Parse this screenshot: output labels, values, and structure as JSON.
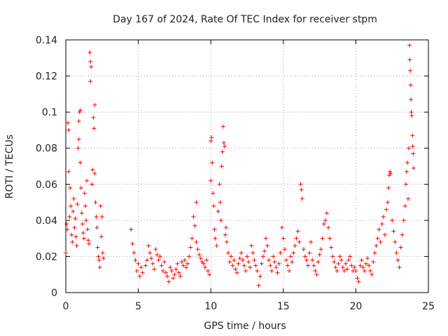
{
  "chart_data": {
    "type": "scatter",
    "title": "Day 167 of 2024, Rate Of TEC Index for receiver stpm",
    "xlabel": "GPS time / hours",
    "ylabel": "ROTI / TECUs",
    "xlim": [
      0,
      25
    ],
    "ylim": [
      0,
      0.14
    ],
    "xticks": [
      0,
      5,
      10,
      15,
      20,
      25
    ],
    "xtick_labels": [
      "0",
      "5",
      "10",
      "15",
      "20",
      "25"
    ],
    "yticks": [
      0,
      0.02,
      0.04,
      0.06,
      0.08,
      0.1,
      0.12,
      0.14
    ],
    "ytick_labels": [
      "0",
      "0.02",
      "0.04",
      "0.06",
      "0.08",
      "0.1",
      "0.12",
      "0.14"
    ],
    "grid": true,
    "marker": "+",
    "color": "#ff0000",
    "series": [
      {
        "name": "ROTI",
        "points": [
          [
            0.0,
            0.022
          ],
          [
            0.05,
            0.038
          ],
          [
            0.1,
            0.035
          ],
          [
            0.15,
            0.094
          ],
          [
            0.2,
            0.09
          ],
          [
            0.2,
            0.067
          ],
          [
            0.25,
            0.042
          ],
          [
            0.3,
            0.058
          ],
          [
            0.35,
            0.048
          ],
          [
            0.4,
            0.032
          ],
          [
            0.45,
            0.028
          ],
          [
            0.5,
            0.045
          ],
          [
            0.55,
            0.052
          ],
          [
            0.6,
            0.036
          ],
          [
            0.65,
            0.041
          ],
          [
            0.7,
            0.031
          ],
          [
            0.75,
            0.026
          ],
          [
            0.8,
            0.049
          ],
          [
            0.85,
            0.08
          ],
          [
            0.9,
            0.085
          ],
          [
            0.9,
            0.095
          ],
          [
            0.95,
            0.1
          ],
          [
            1.0,
            0.101
          ],
          [
            1.0,
            0.072
          ],
          [
            1.05,
            0.058
          ],
          [
            1.1,
            0.044
          ],
          [
            1.15,
            0.038
          ],
          [
            1.2,
            0.033
          ],
          [
            1.25,
            0.03
          ],
          [
            1.3,
            0.055
          ],
          [
            1.35,
            0.048
          ],
          [
            1.4,
            0.04
          ],
          [
            1.45,
            0.062
          ],
          [
            1.5,
            0.035
          ],
          [
            1.55,
            0.029
          ],
          [
            1.6,
            0.027
          ],
          [
            1.65,
            0.133
          ],
          [
            1.7,
            0.128
          ],
          [
            1.7,
            0.117
          ],
          [
            1.75,
            0.125
          ],
          [
            1.8,
            0.06
          ],
          [
            1.85,
            0.068
          ],
          [
            1.9,
            0.097
          ],
          [
            1.95,
            0.091
          ],
          [
            2.0,
            0.104
          ],
          [
            2.0,
            0.066
          ],
          [
            2.05,
            0.05
          ],
          [
            2.1,
            0.042
          ],
          [
            2.15,
            0.036
          ],
          [
            2.2,
            0.025
          ],
          [
            2.25,
            0.02
          ],
          [
            2.3,
            0.018
          ],
          [
            2.35,
            0.014
          ],
          [
            2.4,
            0.048
          ],
          [
            2.45,
            0.031
          ],
          [
            2.5,
            0.042
          ],
          [
            2.55,
            0.022
          ],
          [
            2.6,
            0.019
          ],
          [
            4.5,
            0.035
          ],
          [
            4.6,
            0.027
          ],
          [
            4.7,
            0.022
          ],
          [
            4.8,
            0.018
          ],
          [
            4.9,
            0.012
          ],
          [
            5.0,
            0.016
          ],
          [
            5.1,
            0.009
          ],
          [
            5.2,
            0.014
          ],
          [
            5.3,
            0.011
          ],
          [
            5.5,
            0.015
          ],
          [
            5.6,
            0.018
          ],
          [
            5.7,
            0.026
          ],
          [
            5.8,
            0.022
          ],
          [
            5.9,
            0.019
          ],
          [
            6.0,
            0.016
          ],
          [
            6.1,
            0.013
          ],
          [
            6.2,
            0.024
          ],
          [
            6.3,
            0.021
          ],
          [
            6.4,
            0.018
          ],
          [
            6.5,
            0.02
          ],
          [
            6.6,
            0.015
          ],
          [
            6.7,
            0.012
          ],
          [
            6.8,
            0.017
          ],
          [
            6.9,
            0.011
          ],
          [
            7.0,
            0.009
          ],
          [
            7.1,
            0.006
          ],
          [
            7.2,
            0.014
          ],
          [
            7.3,
            0.012
          ],
          [
            7.4,
            0.008
          ],
          [
            7.5,
            0.01
          ],
          [
            7.6,
            0.013
          ],
          [
            7.7,
            0.016
          ],
          [
            7.8,
            0.011
          ],
          [
            7.9,
            0.009
          ],
          [
            8.0,
            0.017
          ],
          [
            8.1,
            0.015
          ],
          [
            8.2,
            0.018
          ],
          [
            8.3,
            0.014
          ],
          [
            8.4,
            0.016
          ],
          [
            8.5,
            0.02
          ],
          [
            8.6,
            0.025
          ],
          [
            8.7,
            0.03
          ],
          [
            8.8,
            0.042
          ],
          [
            8.9,
            0.037
          ],
          [
            9.0,
            0.05
          ],
          [
            9.0,
            0.028
          ],
          [
            9.1,
            0.024
          ],
          [
            9.2,
            0.021
          ],
          [
            9.3,
            0.019
          ],
          [
            9.4,
            0.017
          ],
          [
            9.5,
            0.016
          ],
          [
            9.6,
            0.014
          ],
          [
            9.7,
            0.018
          ],
          [
            9.8,
            0.012
          ],
          [
            9.9,
            0.01
          ],
          [
            10.0,
            0.062
          ],
          [
            10.0,
            0.084
          ],
          [
            10.05,
            0.086
          ],
          [
            10.1,
            0.072
          ],
          [
            10.15,
            0.055
          ],
          [
            10.2,
            0.048
          ],
          [
            10.25,
            0.035
          ],
          [
            10.3,
            0.03
          ],
          [
            10.4,
            0.026
          ],
          [
            10.5,
            0.045
          ],
          [
            10.6,
            0.06
          ],
          [
            10.65,
            0.05
          ],
          [
            10.7,
            0.04
          ],
          [
            10.75,
            0.07
          ],
          [
            10.8,
            0.078
          ],
          [
            10.85,
            0.092
          ],
          [
            10.9,
            0.083
          ],
          [
            10.95,
            0.081
          ],
          [
            11.0,
            0.032
          ],
          [
            11.05,
            0.036
          ],
          [
            11.1,
            0.028
          ],
          [
            11.2,
            0.022
          ],
          [
            11.3,
            0.017
          ],
          [
            11.4,
            0.02
          ],
          [
            11.5,
            0.015
          ],
          [
            11.6,
            0.018
          ],
          [
            11.7,
            0.013
          ],
          [
            11.8,
            0.011
          ],
          [
            11.9,
            0.016
          ],
          [
            12.0,
            0.019
          ],
          [
            12.1,
            0.022
          ],
          [
            12.2,
            0.018
          ],
          [
            12.3,
            0.015
          ],
          [
            12.4,
            0.012
          ],
          [
            12.5,
            0.02
          ],
          [
            12.6,
            0.017
          ],
          [
            12.7,
            0.014
          ],
          [
            12.8,
            0.026
          ],
          [
            12.9,
            0.022
          ],
          [
            13.0,
            0.018
          ],
          [
            13.1,
            0.015
          ],
          [
            13.2,
            0.012
          ],
          [
            13.3,
            0.004
          ],
          [
            13.4,
            0.009
          ],
          [
            13.5,
            0.016
          ],
          [
            13.6,
            0.02
          ],
          [
            13.7,
            0.023
          ],
          [
            13.8,
            0.03
          ],
          [
            13.9,
            0.026
          ],
          [
            14.0,
            0.018
          ],
          [
            14.1,
            0.015
          ],
          [
            14.2,
            0.012
          ],
          [
            14.3,
            0.02
          ],
          [
            14.4,
            0.017
          ],
          [
            14.5,
            0.014
          ],
          [
            14.6,
            0.011
          ],
          [
            14.7,
            0.016
          ],
          [
            14.8,
            0.022
          ],
          [
            14.9,
            0.036
          ],
          [
            15.0,
            0.03
          ],
          [
            15.1,
            0.024
          ],
          [
            15.2,
            0.018
          ],
          [
            15.3,
            0.015
          ],
          [
            15.4,
            0.012
          ],
          [
            15.5,
            0.02
          ],
          [
            15.6,
            0.017
          ],
          [
            15.7,
            0.022
          ],
          [
            15.8,
            0.026
          ],
          [
            15.9,
            0.03
          ],
          [
            16.0,
            0.034
          ],
          [
            16.1,
            0.028
          ],
          [
            16.2,
            0.06
          ],
          [
            16.25,
            0.057
          ],
          [
            16.3,
            0.052
          ],
          [
            16.4,
            0.024
          ],
          [
            16.5,
            0.02
          ],
          [
            16.6,
            0.018
          ],
          [
            16.7,
            0.015
          ],
          [
            16.8,
            0.022
          ],
          [
            16.9,
            0.028
          ],
          [
            17.0,
            0.018
          ],
          [
            17.1,
            0.015
          ],
          [
            17.2,
            0.012
          ],
          [
            17.3,
            0.01
          ],
          [
            17.4,
            0.017
          ],
          [
            17.5,
            0.021
          ],
          [
            17.6,
            0.024
          ],
          [
            17.7,
            0.03
          ],
          [
            17.8,
            0.038
          ],
          [
            17.9,
            0.04
          ],
          [
            18.0,
            0.044
          ],
          [
            18.1,
            0.036
          ],
          [
            18.2,
            0.03
          ],
          [
            18.3,
            0.025
          ],
          [
            18.4,
            0.02
          ],
          [
            18.5,
            0.017
          ],
          [
            18.6,
            0.014
          ],
          [
            18.7,
            0.012
          ],
          [
            18.8,
            0.016
          ],
          [
            18.9,
            0.02
          ],
          [
            19.0,
            0.018
          ],
          [
            19.1,
            0.014
          ],
          [
            19.2,
            0.012
          ],
          [
            19.3,
            0.016
          ],
          [
            19.4,
            0.013
          ],
          [
            19.5,
            0.018
          ],
          [
            19.6,
            0.02
          ],
          [
            19.7,
            0.015
          ],
          [
            19.8,
            0.012
          ],
          [
            19.9,
            0.014
          ],
          [
            20.0,
            0.012
          ],
          [
            20.1,
            0.008
          ],
          [
            20.2,
            0.006
          ],
          [
            20.3,
            0.015
          ],
          [
            20.4,
            0.018
          ],
          [
            20.5,
            0.014
          ],
          [
            20.6,
            0.012
          ],
          [
            20.7,
            0.016
          ],
          [
            20.8,
            0.019
          ],
          [
            20.9,
            0.015
          ],
          [
            21.0,
            0.012
          ],
          [
            21.1,
            0.01
          ],
          [
            21.2,
            0.017
          ],
          [
            21.3,
            0.022
          ],
          [
            21.4,
            0.026
          ],
          [
            21.5,
            0.03
          ],
          [
            21.6,
            0.035
          ],
          [
            21.7,
            0.028
          ],
          [
            21.8,
            0.038
          ],
          [
            21.9,
            0.042
          ],
          [
            22.0,
            0.032
          ],
          [
            22.1,
            0.046
          ],
          [
            22.2,
            0.05
          ],
          [
            22.25,
            0.058
          ],
          [
            22.3,
            0.065
          ],
          [
            22.35,
            0.067
          ],
          [
            22.4,
            0.066
          ],
          [
            22.5,
            0.04
          ],
          [
            22.6,
            0.034
          ],
          [
            22.7,
            0.028
          ],
          [
            22.8,
            0.022
          ],
          [
            22.9,
            0.018
          ],
          [
            23.0,
            0.014
          ],
          [
            23.1,
            0.025
          ],
          [
            23.2,
            0.032
          ],
          [
            23.3,
            0.04
          ],
          [
            23.4,
            0.048
          ],
          [
            23.45,
            0.06
          ],
          [
            23.5,
            0.067
          ],
          [
            23.55,
            0.072
          ],
          [
            23.6,
            0.052
          ],
          [
            23.65,
            0.08
          ],
          [
            23.7,
            0.137
          ],
          [
            23.72,
            0.129
          ],
          [
            23.75,
            0.123
          ],
          [
            23.78,
            0.115
          ],
          [
            23.8,
            0.107
          ],
          [
            23.82,
            0.1
          ],
          [
            23.85,
            0.098
          ],
          [
            23.9,
            0.087
          ],
          [
            23.92,
            0.081
          ],
          [
            23.95,
            0.077
          ],
          [
            23.98,
            0.069
          ]
        ]
      }
    ]
  }
}
